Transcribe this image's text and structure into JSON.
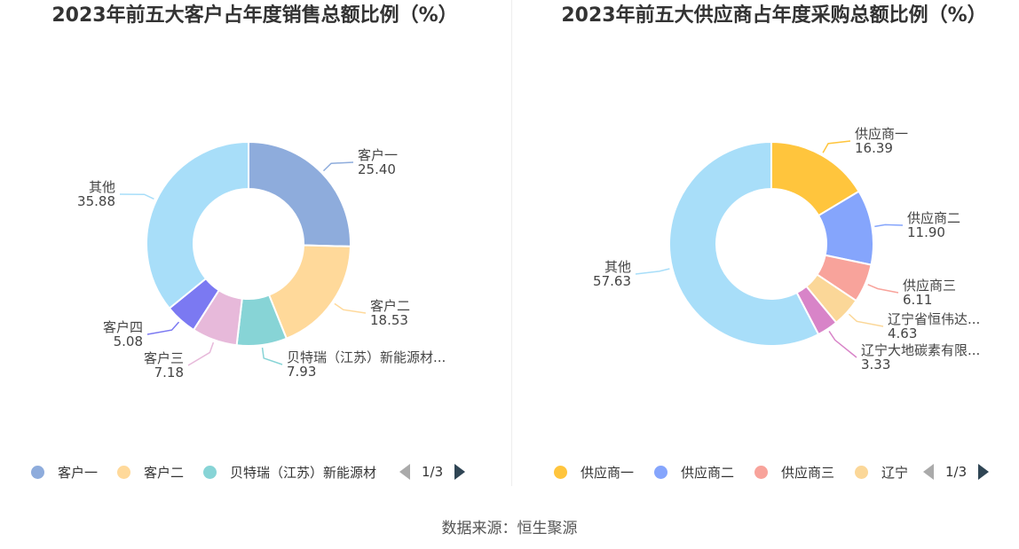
{
  "chart_data": [
    {
      "type": "pie",
      "title": "2023年前五大客户占年度销售总额比例（%）",
      "colors": [
        "#8eacdc",
        "#ffd99a",
        "#87d4d6",
        "#e7b9da",
        "#7b79f2",
        "#a8def9"
      ],
      "slices": [
        {
          "name": "客户一",
          "label": "客户一",
          "value": 25.4,
          "value_text": "25.40"
        },
        {
          "name": "客户二",
          "label": "客户二",
          "value": 18.53,
          "value_text": "18.53"
        },
        {
          "name": "贝特瑞（江苏）新能源材料",
          "label": "贝特瑞（江苏）新能源材...",
          "value": 7.93,
          "value_text": "7.93"
        },
        {
          "name": "客户三",
          "label": "客户三",
          "value": 7.18,
          "value_text": "7.18"
        },
        {
          "name": "客户四",
          "label": "客户四",
          "value": 5.08,
          "value_text": "5.08"
        },
        {
          "name": "其他",
          "label": "其他",
          "value": 35.88,
          "value_text": "35.88"
        }
      ],
      "legend": {
        "items": [
          {
            "name": "客户一",
            "color": "#8eacdc"
          },
          {
            "name": "客户二",
            "color": "#ffd99a"
          },
          {
            "name": "贝特瑞（江苏）新能源材",
            "color": "#87d4d6"
          }
        ],
        "page_text": "1/3"
      }
    },
    {
      "type": "pie",
      "title": "2023年前五大供应商占年度采购总额比例（%）",
      "colors": [
        "#ffc53d",
        "#85a5fc",
        "#f8a39b",
        "#fbd798",
        "#d884c8",
        "#a8def9"
      ],
      "slices": [
        {
          "name": "供应商一",
          "label": "供应商一",
          "value": 16.39,
          "value_text": "16.39"
        },
        {
          "name": "供应商二",
          "label": "供应商二",
          "value": 11.9,
          "value_text": "11.90"
        },
        {
          "name": "供应商三",
          "label": "供应商三",
          "value": 6.11,
          "value_text": "6.11"
        },
        {
          "name": "辽宁省恒伟达",
          "label": "辽宁省恒伟达...",
          "value": 4.63,
          "value_text": "4.63"
        },
        {
          "name": "辽宁大地碳素有限",
          "label": "辽宁大地碳素有限...",
          "value": 3.33,
          "value_text": "3.33"
        },
        {
          "name": "其他",
          "label": "其他",
          "value": 57.63,
          "value_text": "57.63"
        }
      ],
      "legend": {
        "items": [
          {
            "name": "供应商一",
            "color": "#ffc53d"
          },
          {
            "name": "供应商二",
            "color": "#85a5fc"
          },
          {
            "name": "供应商三",
            "color": "#f8a39b"
          },
          {
            "name": "辽宁",
            "color": "#fbd798"
          }
        ],
        "page_text": "1/3"
      }
    }
  ],
  "source": "数据来源：恒生聚源"
}
